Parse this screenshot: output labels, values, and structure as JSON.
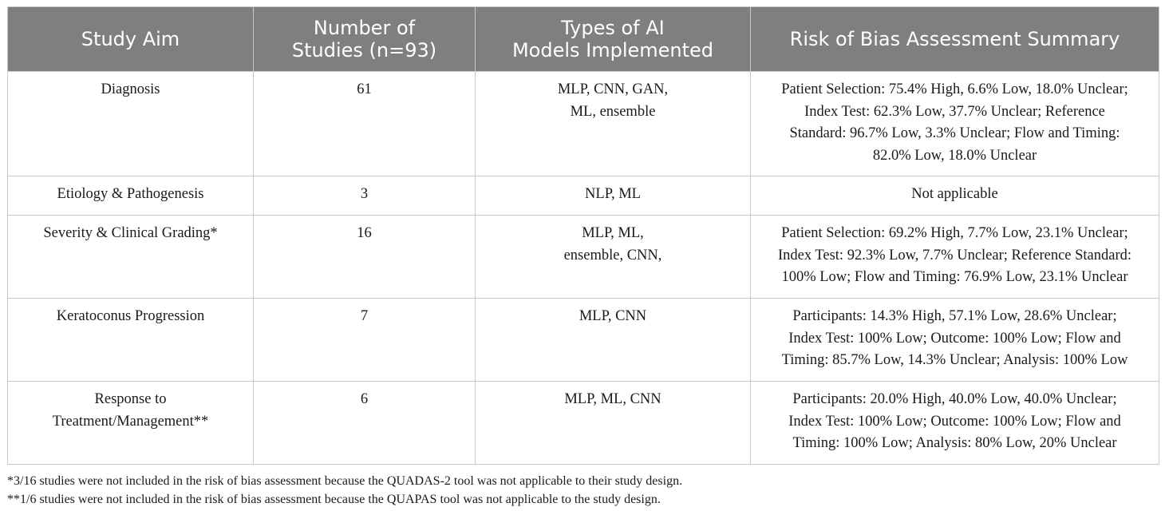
{
  "table": {
    "headers": [
      {
        "lines": [
          "Study Aim"
        ]
      },
      {
        "lines": [
          "Number of",
          "Studies (n=93)"
        ]
      },
      {
        "lines": [
          "Types of AI",
          "Models Implemented"
        ]
      },
      {
        "lines": [
          "Risk of Bias Assessment Summary"
        ]
      }
    ],
    "rows": [
      {
        "study_aim": [
          "Diagnosis"
        ],
        "number": "61",
        "models": [
          "MLP, CNN, GAN,",
          "ML, ensemble"
        ],
        "risk": [
          "Patient Selection: 75.4% High, 6.6% Low, 18.0% Unclear;",
          "Index Test: 62.3% Low, 37.7% Unclear; Reference",
          "Standard: 96.7% Low, 3.3% Unclear; Flow and Timing:",
          "82.0% Low, 18.0% Unclear"
        ]
      },
      {
        "study_aim": [
          "Etiology & Pathogenesis"
        ],
        "number": "3",
        "models": [
          "NLP, ML"
        ],
        "risk": [
          "Not applicable"
        ]
      },
      {
        "study_aim": [
          "Severity & Clinical Grading*"
        ],
        "number": "16",
        "models": [
          "MLP, ML,",
          "ensemble, CNN,"
        ],
        "risk": [
          "Patient Selection: 69.2% High, 7.7% Low, 23.1% Unclear;",
          "Index Test: 92.3% Low, 7.7% Unclear; Reference Standard:",
          "100% Low; Flow and Timing: 76.9% Low, 23.1% Unclear"
        ]
      },
      {
        "study_aim": [
          "Keratoconus Progression"
        ],
        "number": "7",
        "models": [
          "MLP, CNN"
        ],
        "risk": [
          "Participants: 14.3% High, 57.1% Low, 28.6% Unclear;",
          "Index Test: 100% Low; Outcome: 100% Low; Flow and",
          "Timing: 85.7% Low, 14.3% Unclear; Analysis: 100% Low"
        ]
      },
      {
        "study_aim": [
          "Response to",
          "Treatment/Management**"
        ],
        "number": "6",
        "models": [
          "MLP, ML, CNN"
        ],
        "risk": [
          "Participants: 20.0% High, 40.0% Low, 40.0% Unclear;",
          "Index Test: 100% Low; Outcome: 100% Low; Flow and",
          "Timing: 100% Low; Analysis: 80% Low, 20% Unclear"
        ]
      }
    ]
  },
  "footnotes": [
    "*3/16 studies were not included in the risk of bias assessment because the QUADAS-2 tool was not applicable to their study design.",
    "**1/6 studies were not included in the risk of bias assessment because the QUAPAS tool was not applicable to the study design."
  ]
}
